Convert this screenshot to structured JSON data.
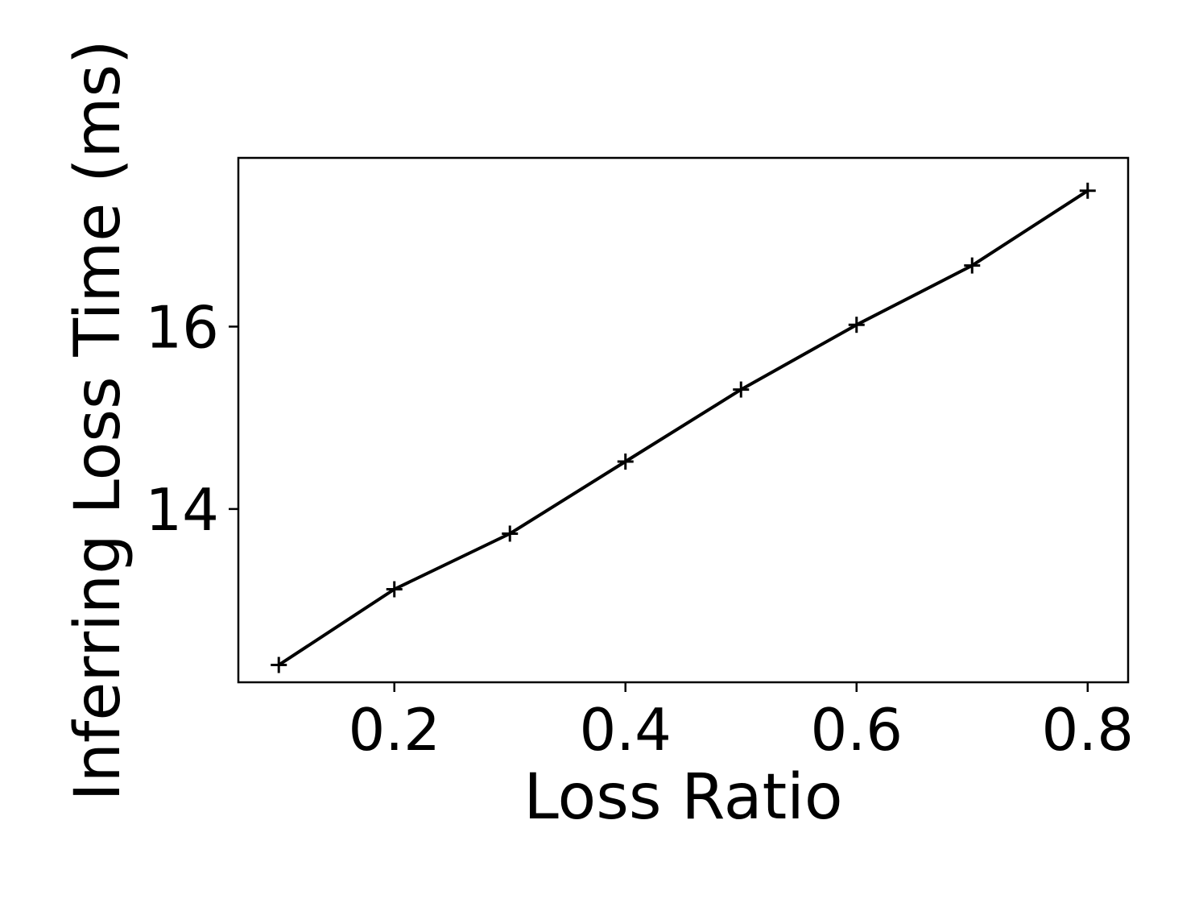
{
  "chart_data": {
    "type": "line",
    "title": "",
    "xlabel": "Loss Ratio",
    "ylabel": "Inferring Loss Time (ms)",
    "xlim": [
      0.065,
      0.835
    ],
    "ylim": [
      12.1,
      17.85
    ],
    "xticks": [
      0.2,
      0.4,
      0.6,
      0.8
    ],
    "xtick_labels": [
      "0.2",
      "0.4",
      "0.6",
      "0.8"
    ],
    "yticks": [
      14,
      16
    ],
    "ytick_labels": [
      "14",
      "16"
    ],
    "grid": false,
    "legend": "none",
    "series": [
      {
        "marker": "plus",
        "color": "#000000",
        "x": [
          0.1,
          0.2,
          0.3,
          0.4,
          0.5,
          0.6,
          0.7,
          0.8
        ],
        "y": [
          12.29,
          13.12,
          13.73,
          14.52,
          15.31,
          16.02,
          16.67,
          17.49
        ]
      }
    ]
  }
}
